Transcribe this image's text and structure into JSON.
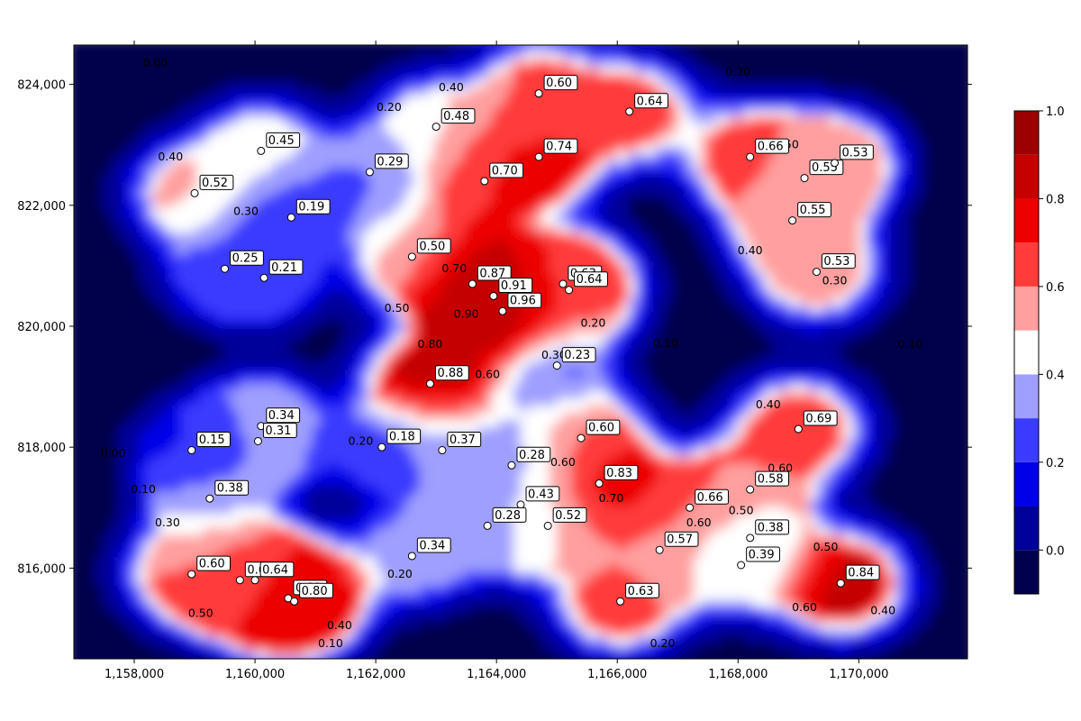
{
  "chart_data": {
    "type": "heatmap",
    "subtype": "filled-contour",
    "title": "",
    "xlabel": "",
    "ylabel": "",
    "xlim": [
      1157000,
      1171800
    ],
    "ylim": [
      814500,
      824650
    ],
    "x_ticks": [
      1158000,
      1160000,
      1162000,
      1164000,
      1166000,
      1168000,
      1170000
    ],
    "x_tick_labels": [
      "1,158,000",
      "1,160,000",
      "1,162,000",
      "1,164,000",
      "1,166,000",
      "1,168,000",
      "1,170,000"
    ],
    "y_ticks": [
      816000,
      818000,
      820000,
      822000,
      824000
    ],
    "y_tick_labels": [
      "816,000",
      "818,000",
      "820,000",
      "822,000",
      "824,000"
    ],
    "grid": false,
    "contour_levels": [
      -0.1,
      0.0,
      0.1,
      0.2,
      0.3,
      0.4,
      0.5,
      0.6,
      0.7,
      0.8,
      0.9,
      1.0
    ],
    "level_colors": [
      "#00004c",
      "#00009a",
      "#0000e8",
      "#3b3bff",
      "#9f9fff",
      "#ffffff",
      "#ff9f9f",
      "#ff3b3b",
      "#ec0000",
      "#c40000",
      "#9c0000"
    ],
    "colorbar": {
      "position": "right",
      "ticks": [
        0.0,
        0.2,
        0.4,
        0.6,
        0.8,
        1.0
      ],
      "tick_labels": [
        "0.0",
        "0.2",
        "0.4",
        "0.6",
        "0.8",
        "1.0"
      ]
    },
    "points": [
      {
        "x": 1159000,
        "y": 822200,
        "value": 0.52,
        "label": "0.52"
      },
      {
        "x": 1160100,
        "y": 822900,
        "value": 0.45,
        "label": "0.45"
      },
      {
        "x": 1160600,
        "y": 821800,
        "value": 0.19,
        "label": "0.19"
      },
      {
        "x": 1159500,
        "y": 820950,
        "value": 0.25,
        "label": "0.25"
      },
      {
        "x": 1160150,
        "y": 820800,
        "value": 0.21,
        "label": "0.21"
      },
      {
        "x": 1161900,
        "y": 822550,
        "value": 0.29,
        "label": "0.29"
      },
      {
        "x": 1163000,
        "y": 823300,
        "value": 0.48,
        "label": "0.48"
      },
      {
        "x": 1164700,
        "y": 823850,
        "value": 0.6,
        "label": "0.60"
      },
      {
        "x": 1166200,
        "y": 823550,
        "value": 0.64,
        "label": "0.64"
      },
      {
        "x": 1164700,
        "y": 822800,
        "value": 0.74,
        "label": "0.74"
      },
      {
        "x": 1163800,
        "y": 822400,
        "value": 0.7,
        "label": "0.70"
      },
      {
        "x": 1162600,
        "y": 821150,
        "value": 0.5,
        "label": "0.50"
      },
      {
        "x": 1163600,
        "y": 820700,
        "value": 0.87,
        "label": "0.87"
      },
      {
        "x": 1163950,
        "y": 820500,
        "value": 0.91,
        "label": "0.91"
      },
      {
        "x": 1164100,
        "y": 820250,
        "value": 0.96,
        "label": "0.96"
      },
      {
        "x": 1165100,
        "y": 820700,
        "value": 0.63,
        "label": "0.63"
      },
      {
        "x": 1165200,
        "y": 820600,
        "value": 0.64,
        "label": "0.64"
      },
      {
        "x": 1162900,
        "y": 819050,
        "value": 0.88,
        "label": "0.88"
      },
      {
        "x": 1165000,
        "y": 819350,
        "value": 0.23,
        "label": "0.23"
      },
      {
        "x": 1168200,
        "y": 822800,
        "value": 0.66,
        "label": "0.66"
      },
      {
        "x": 1169100,
        "y": 822450,
        "value": 0.55,
        "label": "0.55"
      },
      {
        "x": 1169600,
        "y": 822700,
        "value": 0.53,
        "label": "0.53"
      },
      {
        "x": 1168900,
        "y": 821750,
        "value": 0.55,
        "label": "0.55"
      },
      {
        "x": 1169300,
        "y": 820900,
        "value": 0.53,
        "label": "0.53"
      },
      {
        "x": 1160100,
        "y": 818350,
        "value": 0.34,
        "label": "0.34"
      },
      {
        "x": 1160050,
        "y": 818100,
        "value": 0.31,
        "label": "0.31"
      },
      {
        "x": 1158950,
        "y": 817950,
        "value": 0.15,
        "label": "0.15"
      },
      {
        "x": 1162100,
        "y": 818000,
        "value": 0.18,
        "label": "0.18"
      },
      {
        "x": 1163100,
        "y": 817950,
        "value": 0.37,
        "label": "0.37"
      },
      {
        "x": 1159250,
        "y": 817150,
        "value": 0.38,
        "label": "0.38"
      },
      {
        "x": 1164250,
        "y": 817700,
        "value": 0.28,
        "label": "0.28"
      },
      {
        "x": 1165400,
        "y": 818150,
        "value": 0.6,
        "label": "0.60"
      },
      {
        "x": 1165700,
        "y": 817400,
        "value": 0.83,
        "label": "0.83"
      },
      {
        "x": 1164400,
        "y": 817050,
        "value": 0.43,
        "label": "0.43"
      },
      {
        "x": 1163850,
        "y": 816700,
        "value": 0.28,
        "label": "0.28"
      },
      {
        "x": 1164850,
        "y": 816700,
        "value": 0.52,
        "label": "0.52"
      },
      {
        "x": 1167200,
        "y": 817000,
        "value": 0.66,
        "label": "0.66"
      },
      {
        "x": 1168200,
        "y": 817300,
        "value": 0.58,
        "label": "0.58"
      },
      {
        "x": 1169000,
        "y": 818300,
        "value": 0.69,
        "label": "0.69"
      },
      {
        "x": 1166700,
        "y": 816300,
        "value": 0.57,
        "label": "0.57"
      },
      {
        "x": 1168200,
        "y": 816500,
        "value": 0.38,
        "label": "0.38"
      },
      {
        "x": 1168050,
        "y": 816050,
        "value": 0.39,
        "label": "0.39"
      },
      {
        "x": 1162600,
        "y": 816200,
        "value": 0.34,
        "label": "0.34"
      },
      {
        "x": 1158950,
        "y": 815900,
        "value": 0.6,
        "label": "0.60"
      },
      {
        "x": 1159750,
        "y": 815800,
        "value": 0.61,
        "label": "0.61"
      },
      {
        "x": 1160000,
        "y": 815800,
        "value": 0.64,
        "label": "0.64"
      },
      {
        "x": 1160550,
        "y": 815500,
        "value": 0.82,
        "label": "0.82"
      },
      {
        "x": 1160650,
        "y": 815450,
        "value": 0.8,
        "label": "0.80"
      },
      {
        "x": 1166050,
        "y": 815450,
        "value": 0.63,
        "label": "0.63"
      },
      {
        "x": 1169700,
        "y": 815750,
        "value": 0.84,
        "label": "0.84"
      }
    ],
    "contour_labels": [
      {
        "x": 1158350,
        "y": 824350,
        "text": "0.00"
      },
      {
        "x": 1158600,
        "y": 822800,
        "text": "0.40"
      },
      {
        "x": 1159850,
        "y": 821900,
        "text": "0.30"
      },
      {
        "x": 1162220,
        "y": 823620,
        "text": "0.20"
      },
      {
        "x": 1163250,
        "y": 823950,
        "text": "0.40"
      },
      {
        "x": 1168000,
        "y": 824200,
        "text": "0.20"
      },
      {
        "x": 1168800,
        "y": 823000,
        "text": "0.50"
      },
      {
        "x": 1168200,
        "y": 821250,
        "text": "0.40"
      },
      {
        "x": 1169600,
        "y": 820750,
        "text": "0.30"
      },
      {
        "x": 1163300,
        "y": 820950,
        "text": "0.70"
      },
      {
        "x": 1162350,
        "y": 820300,
        "text": "0.50"
      },
      {
        "x": 1163500,
        "y": 820200,
        "text": "0.90"
      },
      {
        "x": 1162900,
        "y": 819700,
        "text": "0.80"
      },
      {
        "x": 1163850,
        "y": 819200,
        "text": "0.60"
      },
      {
        "x": 1164950,
        "y": 819520,
        "text": "0.30"
      },
      {
        "x": 1165600,
        "y": 820050,
        "text": "0.20"
      },
      {
        "x": 1166800,
        "y": 819720,
        "text": "0.10"
      },
      {
        "x": 1170850,
        "y": 819700,
        "text": "0.10"
      },
      {
        "x": 1168500,
        "y": 818700,
        "text": "0.40"
      },
      {
        "x": 1161750,
        "y": 818100,
        "text": "0.20"
      },
      {
        "x": 1157650,
        "y": 817900,
        "text": "0.00"
      },
      {
        "x": 1158150,
        "y": 817300,
        "text": "0.10"
      },
      {
        "x": 1158550,
        "y": 816750,
        "text": "0.30"
      },
      {
        "x": 1165100,
        "y": 817750,
        "text": "0.60"
      },
      {
        "x": 1165900,
        "y": 817150,
        "text": "0.70"
      },
      {
        "x": 1168700,
        "y": 817650,
        "text": "0.60"
      },
      {
        "x": 1167350,
        "y": 816750,
        "text": "0.60"
      },
      {
        "x": 1168050,
        "y": 816950,
        "text": "0.50"
      },
      {
        "x": 1162400,
        "y": 815900,
        "text": "0.20"
      },
      {
        "x": 1159100,
        "y": 815250,
        "text": "0.50"
      },
      {
        "x": 1161400,
        "y": 815050,
        "text": "0.40"
      },
      {
        "x": 1169450,
        "y": 816350,
        "text": "0.50"
      },
      {
        "x": 1169100,
        "y": 815350,
        "text": "0.60"
      },
      {
        "x": 1170400,
        "y": 815300,
        "text": "0.40"
      },
      {
        "x": 1161250,
        "y": 814750,
        "text": "0.10"
      },
      {
        "x": 1166750,
        "y": 814750,
        "text": "0.20"
      }
    ]
  }
}
